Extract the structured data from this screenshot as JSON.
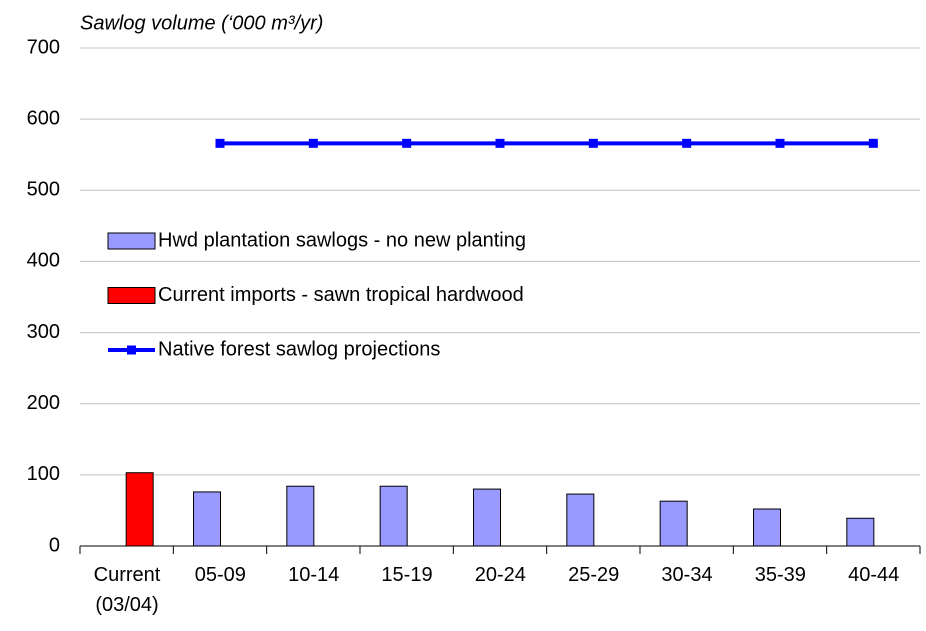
{
  "chart_data": {
    "type": "bar",
    "title": "Sawlog volume (‘000 m³/yr)",
    "categories": [
      "Current\n(03/04)",
      "05-09",
      "10-14",
      "15-19",
      "20-24",
      "25-29",
      "30-34",
      "35-39",
      "40-44"
    ],
    "series": [
      {
        "name": "Hwd plantation sawlogs - no new planting",
        "type": "bar",
        "color": "#9999ff",
        "values": [
          null,
          76,
          84,
          84,
          80,
          73,
          63,
          52,
          39
        ]
      },
      {
        "name": "Current imports - sawn tropical hardwood",
        "type": "bar",
        "color": "#ff0000",
        "values": [
          103,
          null,
          null,
          null,
          null,
          null,
          null,
          null,
          null
        ]
      },
      {
        "name": "Native forest sawlog projections",
        "type": "line",
        "color": "#0000ff",
        "values": [
          null,
          566,
          566,
          566,
          566,
          566,
          566,
          566,
          566
        ]
      }
    ],
    "ylim": [
      0,
      700
    ],
    "yticks": [
      0,
      100,
      200,
      300,
      400,
      500,
      600,
      700
    ],
    "grid": true,
    "legend": "left"
  }
}
